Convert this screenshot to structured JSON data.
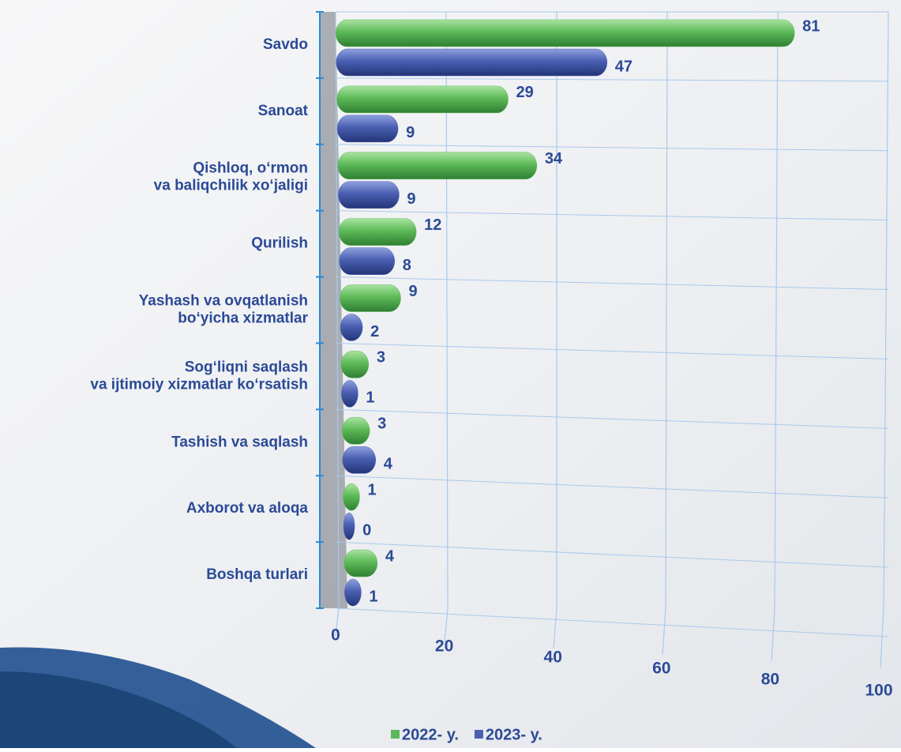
{
  "chart_data": {
    "type": "bar",
    "orientation": "horizontal",
    "categories": [
      "Savdo",
      "Sanoat",
      "Qishloq, o‘rmon\nva baliqchilik xo‘jaligi",
      "Qurilish",
      "Yashash va ovqatlanish\nbo‘yicha xizmatlar",
      "Sog‘liqni saqlash\nva ijtimoiy xizmatlar ko‘rsatish",
      "Tashish va saqlash",
      "Axborot va aloqa",
      "Boshqa turlari"
    ],
    "series": [
      {
        "name": "2022- y.",
        "color": "#5cb85c",
        "values": [
          81,
          29,
          34,
          12,
          9,
          3,
          3,
          1,
          4
        ]
      },
      {
        "name": "2023- y.",
        "color": "#4a5fb2",
        "values": [
          47,
          9,
          9,
          8,
          2,
          1,
          4,
          0,
          1
        ]
      }
    ],
    "xlim": [
      0,
      100
    ],
    "xticks": [
      0,
      20,
      40,
      60,
      80,
      100
    ],
    "grid": true,
    "legend": "bottom"
  }
}
